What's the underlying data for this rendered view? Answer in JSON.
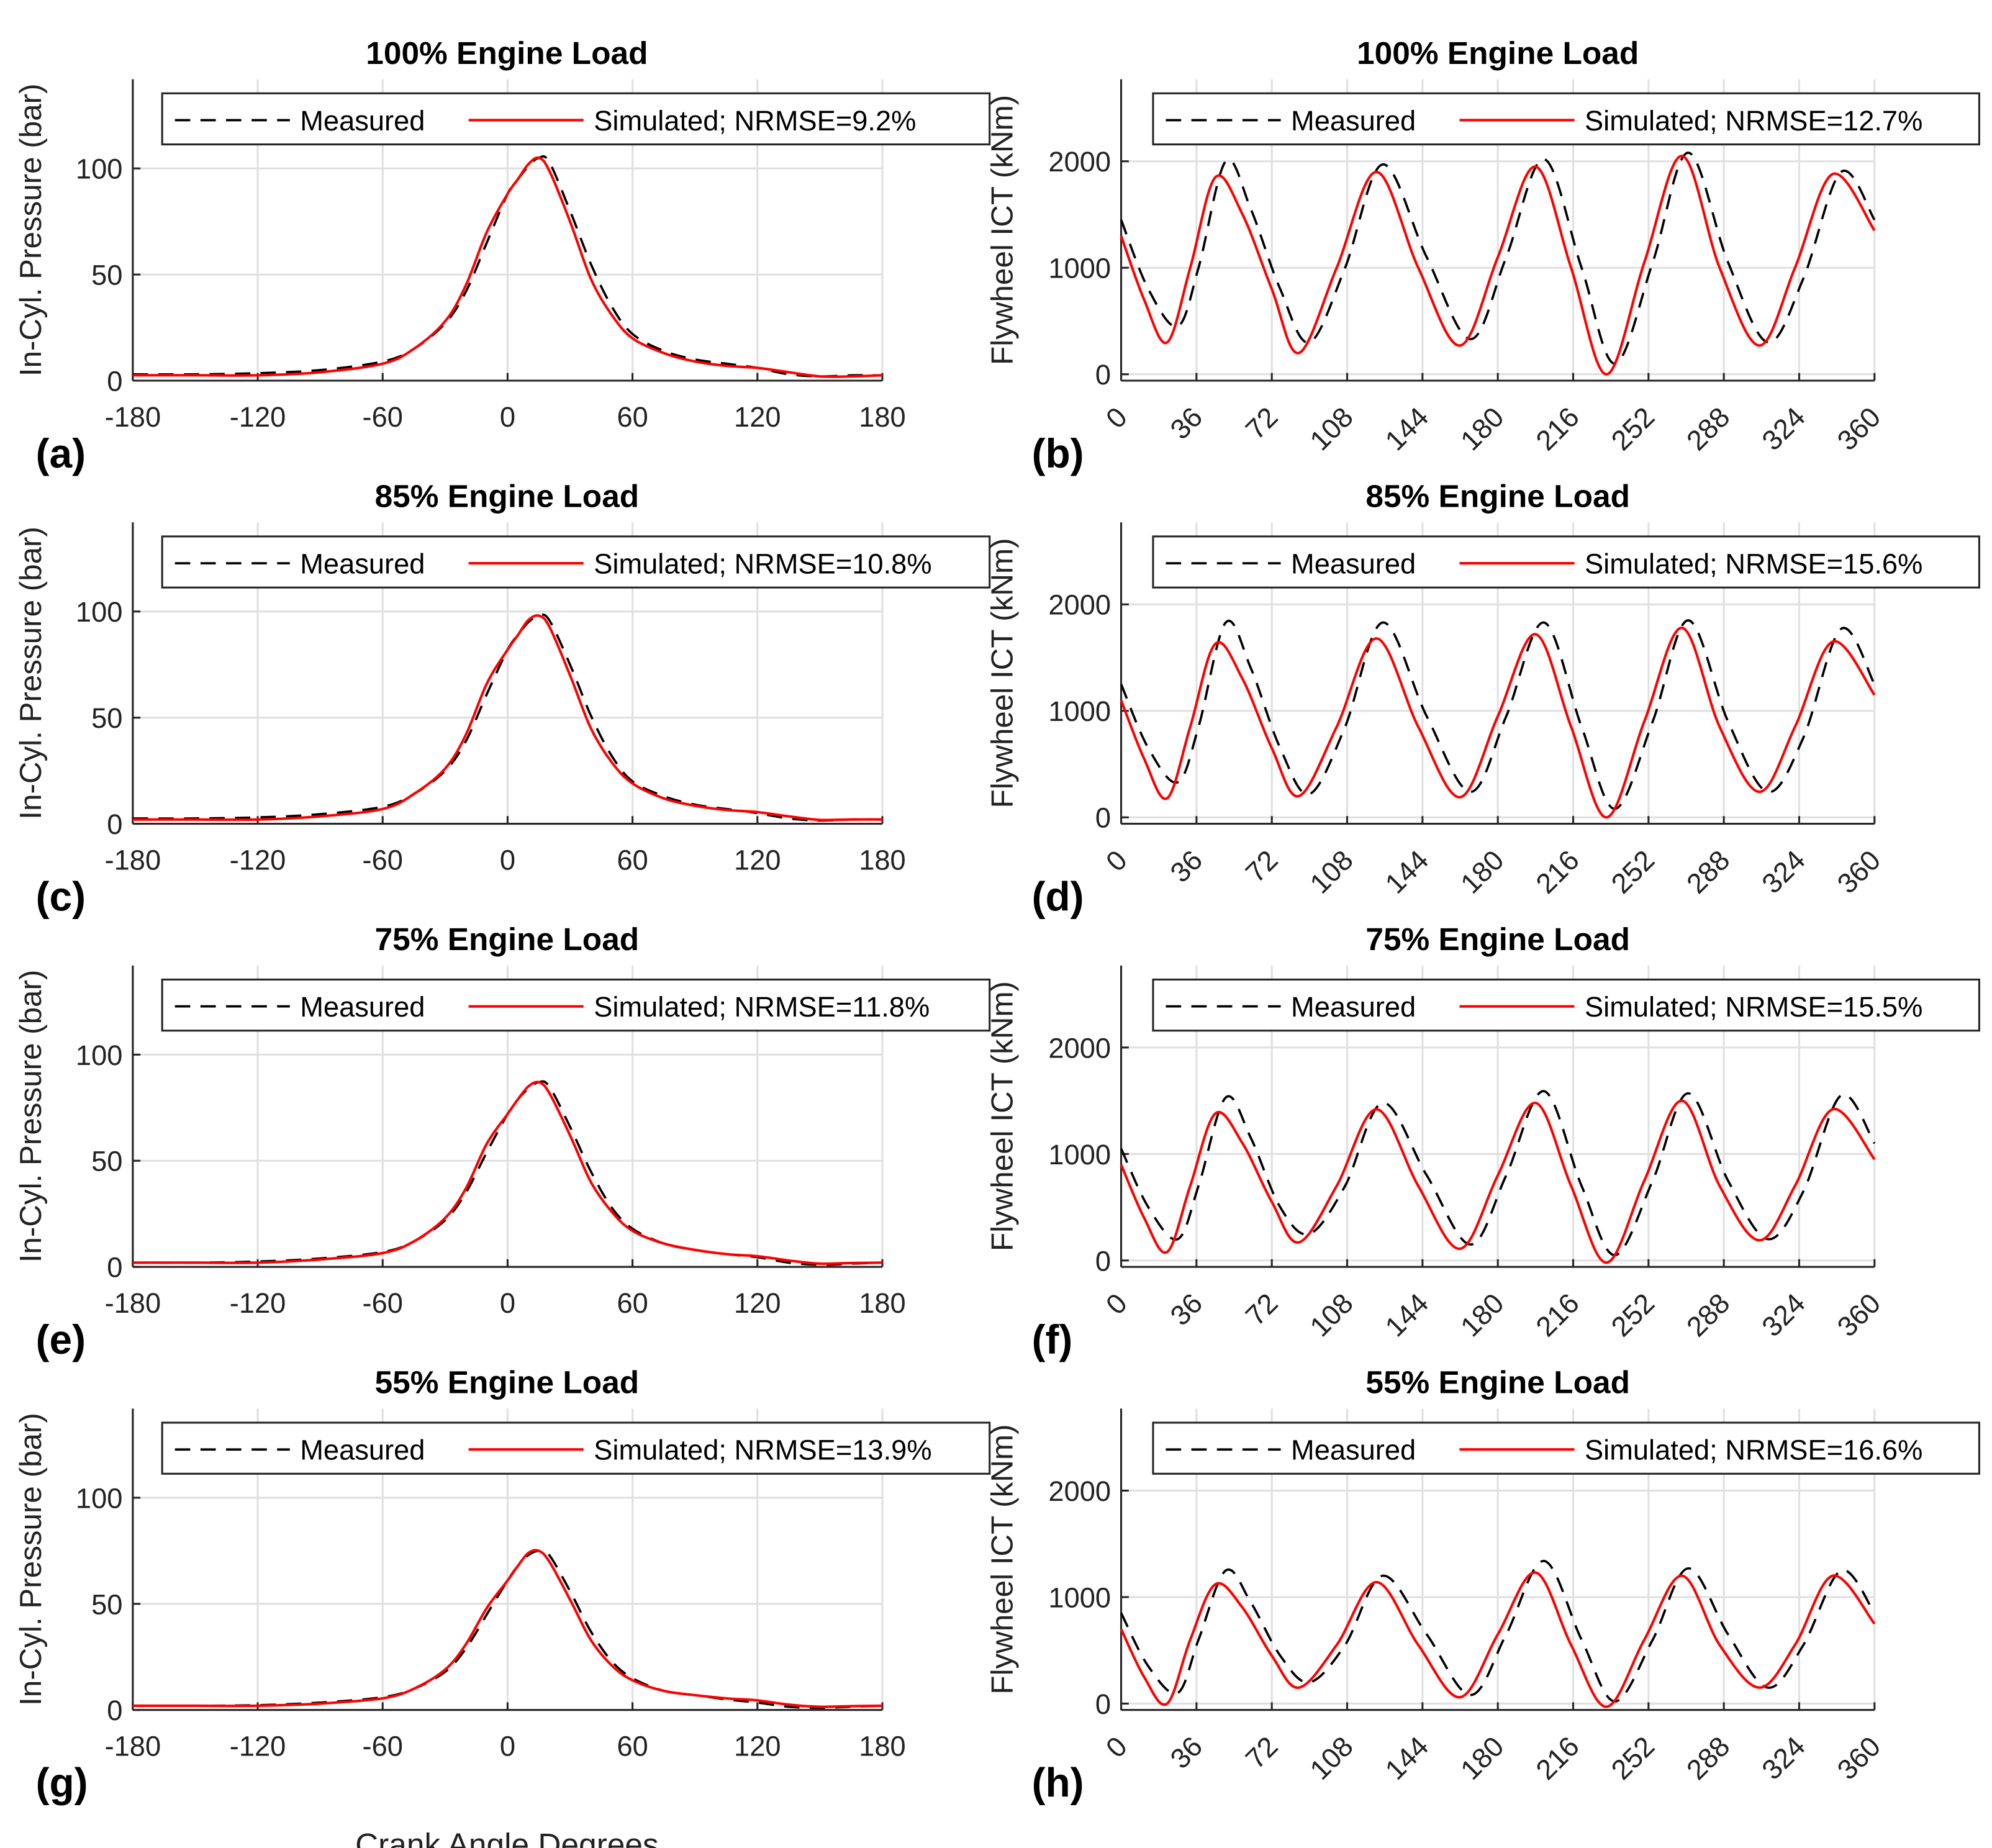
{
  "chart_data": [
    {
      "type": "line",
      "label": "(a)",
      "title": "100% Engine Load",
      "ylabel": "In-Cyl. Pressure (bar)",
      "xlabel": "",
      "xlim": [
        -180,
        180
      ],
      "ylim": [
        0,
        142
      ],
      "xticks": [
        -180,
        -120,
        -60,
        0,
        60,
        120,
        180
      ],
      "yticks": [
        0,
        50,
        100
      ],
      "grid": true,
      "legend": "top",
      "x": [
        -180,
        -150,
        -120,
        -90,
        -60,
        -45,
        -30,
        -20,
        -10,
        0,
        5,
        10,
        15,
        20,
        30,
        40,
        50,
        60,
        75,
        90,
        105,
        120,
        135,
        150,
        165,
        180
      ],
      "series": [
        {
          "name": "Measured",
          "style": "dashed",
          "color": "#000000",
          "values": [
            3,
            3,
            3.5,
            5,
            9,
            15,
            27,
            42,
            65,
            88,
            95,
            101,
            105,
            103,
            80,
            55,
            35,
            22,
            14,
            10,
            8,
            6,
            3,
            2,
            2.5,
            2.5
          ]
        },
        {
          "name": "Simulated; NRMSE=9.2%",
          "style": "solid",
          "color": "#ff0000",
          "values": [
            2.5,
            2.5,
            2.5,
            4,
            8,
            15,
            28,
            45,
            70,
            88,
            95,
            102,
            105,
            99,
            75,
            48,
            31,
            20,
            13,
            9,
            7,
            6,
            4,
            2,
            2,
            2.5
          ]
        }
      ]
    },
    {
      "type": "line",
      "label": "(b)",
      "title": "100% Engine Load",
      "ylabel": "Flywheel ICT (kNm)",
      "xlabel": "",
      "xlim": [
        0,
        360
      ],
      "ylim": [
        -60,
        2770
      ],
      "xticks": [
        0,
        36,
        72,
        108,
        144,
        180,
        216,
        252,
        288,
        324,
        360
      ],
      "yticks": [
        0,
        1000,
        2000
      ],
      "grid": true,
      "legend": "top",
      "series": [
        {
          "name": "Measured",
          "style": "dashed",
          "color": "#000000",
          "x": [
            0,
            13,
            27,
            37,
            50,
            62,
            76,
            90,
            107,
            125,
            146,
            167,
            184,
            202,
            220,
            236,
            254,
            271,
            290,
            309,
            326,
            344,
            360
          ],
          "values": [
            1450,
            800,
            450,
            1000,
            2000,
            1550,
            800,
            300,
            1000,
            1970,
            1100,
            330,
            1100,
            2020,
            1000,
            100,
            1050,
            2080,
            1050,
            300,
            900,
            1900,
            1450
          ]
        },
        {
          "name": "Simulated; NRMSE=12.7%",
          "style": "solid",
          "color": "#ff0000",
          "x": [
            0,
            11,
            22,
            33,
            45,
            58,
            72,
            85,
            103,
            122,
            142,
            162,
            180,
            198,
            215,
            232,
            250,
            268,
            286,
            305,
            322,
            340,
            360
          ],
          "values": [
            1300,
            700,
            300,
            1000,
            1850,
            1500,
            800,
            200,
            1000,
            1900,
            1000,
            270,
            1100,
            1950,
            1000,
            0,
            1050,
            2050,
            1000,
            270,
            1000,
            1880,
            1350
          ]
        }
      ]
    },
    {
      "type": "line",
      "label": "(c)",
      "title": "85% Engine Load",
      "ylabel": "In-Cyl. Pressure (bar)",
      "xlabel": "",
      "xlim": [
        -180,
        180
      ],
      "ylim": [
        0,
        142
      ],
      "xticks": [
        -180,
        -120,
        -60,
        0,
        60,
        120,
        180
      ],
      "yticks": [
        0,
        50,
        100
      ],
      "grid": true,
      "legend": "top",
      "x": [
        -180,
        -150,
        -120,
        -90,
        -60,
        -45,
        -30,
        -20,
        -10,
        0,
        5,
        10,
        15,
        20,
        30,
        40,
        50,
        60,
        75,
        90,
        105,
        120,
        135,
        150,
        165,
        180
      ],
      "series": [
        {
          "name": "Measured",
          "style": "dashed",
          "color": "#000000",
          "values": [
            2.5,
            2.5,
            3,
            4.5,
            8,
            14,
            25,
            39,
            61,
            82,
            89,
            95,
            98,
            96,
            75,
            51,
            32,
            20,
            13,
            9,
            7,
            5,
            2.5,
            1.5,
            2,
            2
          ]
        },
        {
          "name": "Simulated; NRMSE=10.8%",
          "style": "solid",
          "color": "#ff0000",
          "values": [
            2,
            2,
            2,
            3.5,
            7,
            14,
            26,
            42,
            66,
            82,
            89,
            96,
            98,
            93,
            70,
            45,
            29,
            19,
            12,
            8.5,
            6.5,
            5.5,
            3.5,
            1.8,
            2,
            2
          ]
        }
      ]
    },
    {
      "type": "line",
      "label": "(d)",
      "title": "85% Engine Load",
      "ylabel": "Flywheel ICT (kNm)",
      "xlabel": "",
      "xlim": [
        0,
        360
      ],
      "ylim": [
        -60,
        2770
      ],
      "xticks": [
        0,
        36,
        72,
        108,
        144,
        180,
        216,
        252,
        288,
        324,
        360
      ],
      "yticks": [
        0,
        1000,
        2000
      ],
      "grid": true,
      "legend": "top",
      "series": [
        {
          "name": "Measured",
          "style": "dashed",
          "color": "#000000",
          "x": [
            0,
            13,
            27,
            37,
            50,
            62,
            76,
            90,
            107,
            125,
            146,
            167,
            184,
            202,
            220,
            236,
            254,
            271,
            290,
            309,
            326,
            344,
            360
          ],
          "values": [
            1250,
            650,
            330,
            850,
            1830,
            1400,
            650,
            220,
            850,
            1830,
            950,
            240,
            950,
            1830,
            850,
            80,
            900,
            1850,
            900,
            240,
            750,
            1770,
            1250
          ]
        },
        {
          "name": "Simulated; NRMSE=15.6%",
          "style": "solid",
          "color": "#ff0000",
          "x": [
            0,
            11,
            22,
            33,
            45,
            58,
            72,
            85,
            103,
            122,
            142,
            162,
            180,
            198,
            215,
            232,
            250,
            268,
            286,
            305,
            322,
            340,
            360
          ],
          "values": [
            1100,
            550,
            180,
            850,
            1630,
            1300,
            650,
            200,
            850,
            1680,
            850,
            190,
            950,
            1720,
            850,
            0,
            900,
            1780,
            850,
            240,
            850,
            1650,
            1150
          ]
        }
      ]
    },
    {
      "type": "line",
      "label": "(e)",
      "title": "75% Engine Load",
      "ylabel": "In-Cyl. Pressure (bar)",
      "xlabel": "",
      "xlim": [
        -180,
        180
      ],
      "ylim": [
        0,
        142
      ],
      "xticks": [
        -180,
        -120,
        -60,
        0,
        60,
        120,
        180
      ],
      "yticks": [
        0,
        50,
        100
      ],
      "grid": true,
      "legend": "top",
      "x": [
        -180,
        -150,
        -120,
        -90,
        -60,
        -45,
        -30,
        -20,
        -10,
        0,
        5,
        10,
        15,
        20,
        30,
        40,
        50,
        60,
        75,
        90,
        105,
        120,
        135,
        150,
        165,
        180
      ],
      "series": [
        {
          "name": "Measured",
          "style": "dashed",
          "color": "#000000",
          "values": [
            2,
            2,
            2.5,
            4,
            7,
            12,
            22,
            35,
            54,
            72,
            79,
            84,
            87,
            85,
            66,
            45,
            28,
            18,
            11,
            8,
            6,
            4.5,
            2,
            1,
            1.5,
            2
          ]
        },
        {
          "name": "Simulated; NRMSE=11.8%",
          "style": "solid",
          "color": "#ff0000",
          "values": [
            2,
            2,
            2,
            3.5,
            6.5,
            12,
            23,
            37,
            58,
            72,
            79,
            85,
            87,
            82,
            62,
            40,
            26,
            17,
            11,
            8,
            6,
            5,
            3,
            1.5,
            1.8,
            2
          ]
        }
      ]
    },
    {
      "type": "line",
      "label": "(f)",
      "title": "75% Engine Load",
      "ylabel": "Flywheel ICT (kNm)",
      "xlabel": "",
      "xlim": [
        0,
        360
      ],
      "ylim": [
        -60,
        2770
      ],
      "xticks": [
        0,
        36,
        72,
        108,
        144,
        180,
        216,
        252,
        288,
        324,
        360
      ],
      "yticks": [
        0,
        1000,
        2000
      ],
      "grid": true,
      "legend": "top",
      "series": [
        {
          "name": "Measured",
          "style": "dashed",
          "color": "#000000",
          "x": [
            0,
            13,
            27,
            37,
            50,
            62,
            76,
            90,
            107,
            125,
            146,
            167,
            184,
            202,
            220,
            236,
            254,
            271,
            290,
            309,
            326,
            344,
            360
          ],
          "values": [
            1050,
            500,
            200,
            700,
            1530,
            1150,
            500,
            250,
            700,
            1480,
            800,
            150,
            800,
            1590,
            700,
            50,
            750,
            1570,
            750,
            200,
            650,
            1550,
            1100
          ]
        },
        {
          "name": "Simulated; NRMSE=15.5%",
          "style": "solid",
          "color": "#ff0000",
          "x": [
            0,
            11,
            22,
            33,
            45,
            58,
            72,
            85,
            103,
            122,
            142,
            162,
            180,
            198,
            215,
            232,
            250,
            268,
            286,
            305,
            322,
            340,
            360
          ],
          "values": [
            900,
            400,
            80,
            700,
            1380,
            1100,
            550,
            170,
            700,
            1420,
            700,
            110,
            800,
            1480,
            700,
            -20,
            750,
            1500,
            700,
            190,
            700,
            1420,
            950
          ]
        }
      ]
    },
    {
      "type": "line",
      "label": "(g)",
      "title": "55% Engine Load",
      "ylabel": "In-Cyl. Pressure (bar)",
      "xlabel": "Crank Angle Degrees",
      "xlim": [
        -180,
        180
      ],
      "ylim": [
        0,
        142
      ],
      "xticks": [
        -180,
        -120,
        -60,
        0,
        60,
        120,
        180
      ],
      "yticks": [
        0,
        50,
        100
      ],
      "grid": true,
      "legend": "top",
      "x": [
        -180,
        -150,
        -120,
        -90,
        -60,
        -45,
        -30,
        -20,
        -10,
        0,
        5,
        10,
        15,
        20,
        30,
        40,
        50,
        60,
        75,
        90,
        105,
        120,
        135,
        150,
        165,
        180
      ],
      "series": [
        {
          "name": "Measured",
          "style": "dashed",
          "color": "#000000",
          "values": [
            2,
            2,
            2.3,
            3.5,
            6,
            10,
            18,
            29,
            45,
            61,
            68,
            73,
            75,
            73,
            56,
            37,
            23,
            15,
            9,
            7,
            5,
            3.5,
            1.5,
            1,
            1.5,
            2
          ]
        },
        {
          "name": "Simulated; NRMSE=13.9%",
          "style": "solid",
          "color": "#ff0000",
          "values": [
            2,
            2,
            2,
            3,
            5.5,
            10,
            19,
            31,
            48,
            61,
            68,
            74,
            75,
            70,
            52,
            33,
            21,
            14,
            9,
            7,
            5.5,
            4.5,
            2.5,
            1.5,
            1.8,
            2
          ]
        }
      ]
    },
    {
      "type": "line",
      "label": "(h)",
      "title": "55% Engine Load",
      "ylabel": "Flywheel ICT (kNm)",
      "xlabel": "Crank Angle Degrees",
      "xlim": [
        0,
        360
      ],
      "ylim": [
        -60,
        2770
      ],
      "xticks": [
        0,
        36,
        72,
        108,
        144,
        180,
        216,
        252,
        288,
        324,
        360
      ],
      "yticks": [
        0,
        1000,
        2000
      ],
      "grid": true,
      "legend": "top",
      "series": [
        {
          "name": "Measured",
          "style": "dashed",
          "color": "#000000",
          "x": [
            0,
            13,
            27,
            37,
            50,
            62,
            76,
            90,
            107,
            125,
            146,
            167,
            184,
            202,
            220,
            236,
            254,
            271,
            290,
            309,
            326,
            344,
            360
          ],
          "values": [
            850,
            350,
            100,
            600,
            1250,
            950,
            450,
            200,
            550,
            1200,
            650,
            80,
            650,
            1340,
            600,
            20,
            600,
            1270,
            650,
            150,
            550,
            1250,
            850
          ]
        },
        {
          "name": "Simulated; NRMSE=16.6%",
          "style": "solid",
          "color": "#ff0000",
          "x": [
            0,
            11,
            22,
            33,
            45,
            58,
            72,
            85,
            103,
            122,
            142,
            162,
            180,
            198,
            215,
            232,
            250,
            268,
            286,
            305,
            322,
            340,
            360
          ],
          "values": [
            700,
            250,
            0,
            600,
            1120,
            900,
            450,
            150,
            550,
            1140,
            550,
            60,
            650,
            1230,
            550,
            -30,
            600,
            1200,
            550,
            150,
            550,
            1200,
            750
          ]
        }
      ]
    }
  ]
}
